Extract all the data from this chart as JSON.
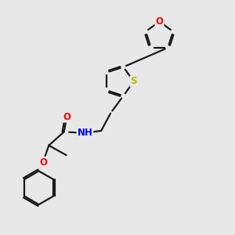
{
  "bg_color": "#e8e8e8",
  "bond_color": "#1a1a1a",
  "atom_colors": {
    "O": "#ff0000",
    "S": "#b8b800",
    "N": "#0000ee",
    "C": "#1a1a1a"
  },
  "line_width": 1.6,
  "dbo": 0.055,
  "font_size": 8.5
}
